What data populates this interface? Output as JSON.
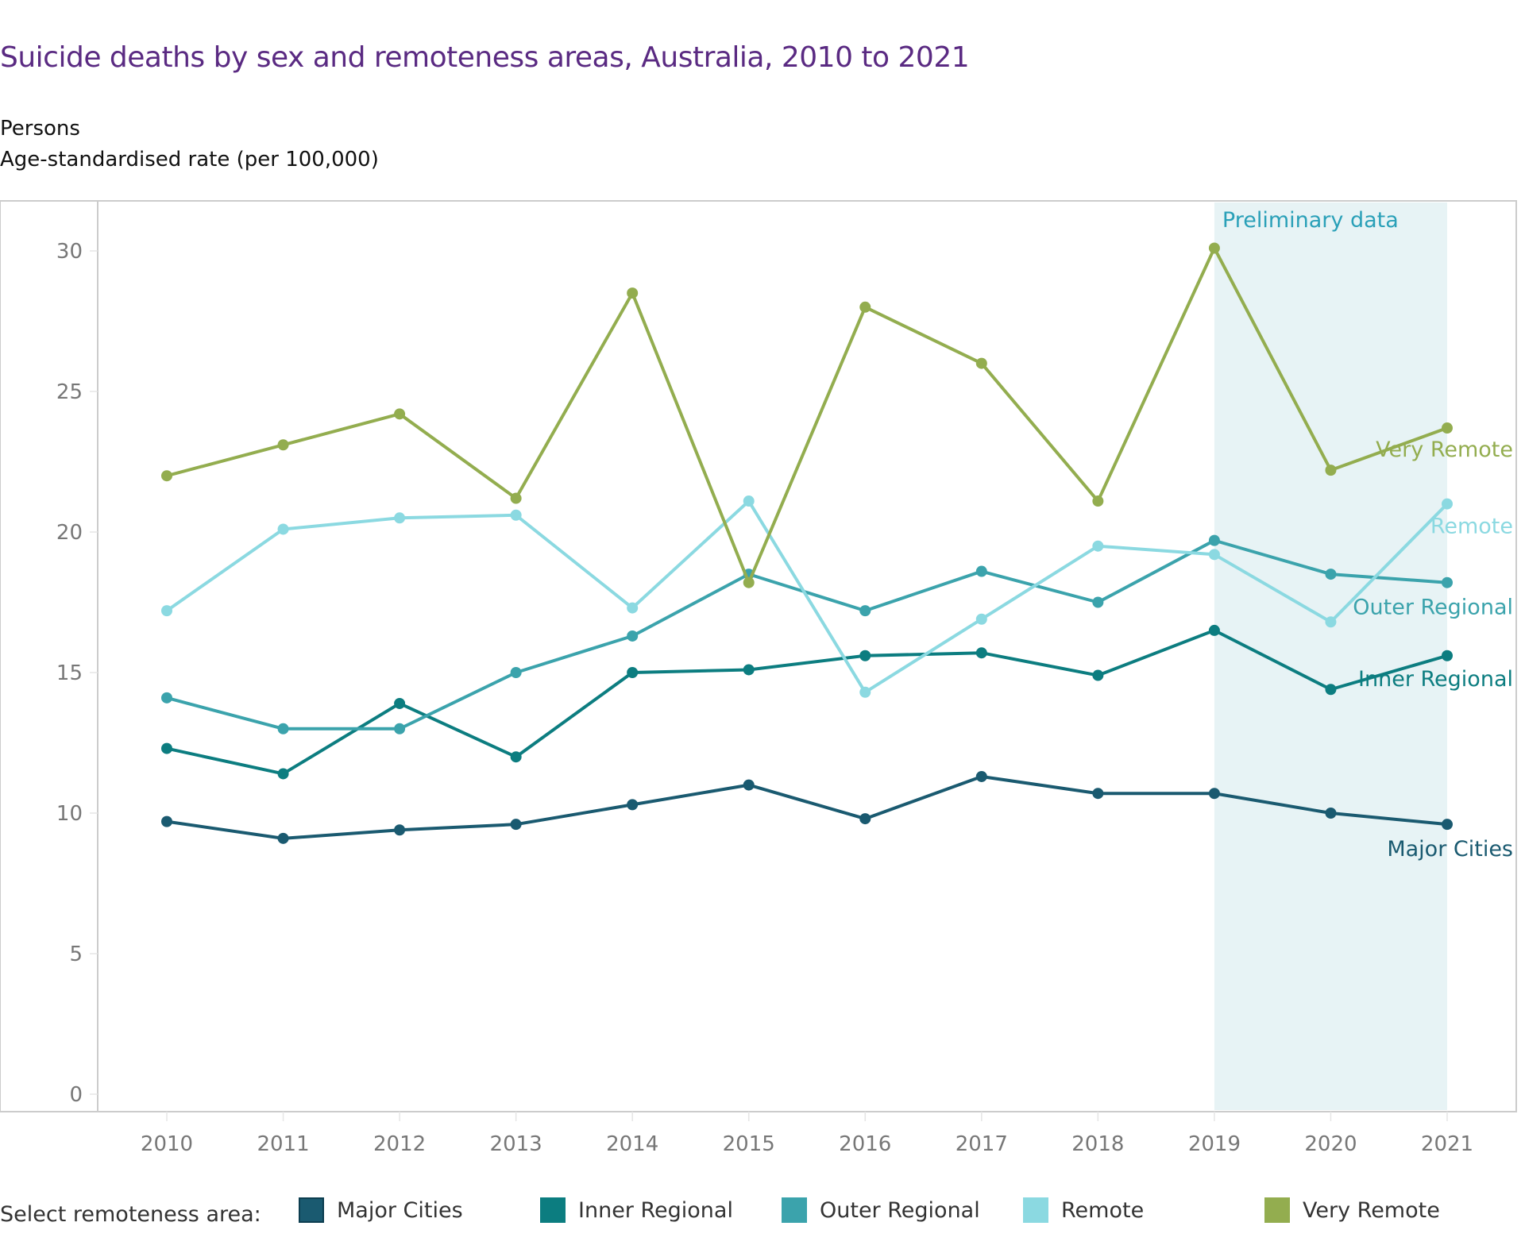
{
  "header": {
    "title": "Suicide deaths by sex and remoteness areas, Australia, 2010 to 2021",
    "subtitle_sex": "Persons",
    "subtitle_measure": "Age-standardised rate (per 100,000)"
  },
  "legend": {
    "title": "Select remoteness area:",
    "items": [
      {
        "label": "Major Cities",
        "color": "#1a5a70"
      },
      {
        "label": "Inner Regional",
        "color": "#0c7d80"
      },
      {
        "label": "Outer Regional",
        "color": "#3ba3ac"
      },
      {
        "label": "Remote",
        "color": "#8bd9e1"
      },
      {
        "label": "Very Remote",
        "color": "#93ad4f"
      }
    ]
  },
  "chart_data": {
    "type": "line",
    "title": "Suicide deaths by sex and remoteness areas, Australia, 2010 to 2021",
    "xlabel": "",
    "ylabel": "Age-standardised rate (per 100,000)",
    "x": [
      "2010",
      "2011",
      "2012",
      "2013",
      "2014",
      "2015",
      "2016",
      "2017",
      "2018",
      "2019",
      "2020",
      "2021"
    ],
    "ylim": [
      0,
      30
    ],
    "yticks": [
      0,
      5,
      10,
      15,
      20,
      25,
      30
    ],
    "grid": false,
    "legend_position": "bottom",
    "annotation": {
      "text": "Preliminary data",
      "from": "2019",
      "to": "2021",
      "color": "#e7f3f5"
    },
    "series": [
      {
        "name": "Major Cities",
        "color": "#1a5a70",
        "values": [
          9.7,
          9.1,
          9.4,
          9.6,
          10.3,
          11.0,
          9.8,
          11.3,
          10.7,
          10.7,
          10.0,
          9.6
        ]
      },
      {
        "name": "Inner Regional",
        "color": "#0c7d80",
        "values": [
          12.3,
          11.4,
          13.9,
          12.0,
          15.0,
          15.1,
          15.6,
          15.7,
          14.9,
          16.5,
          14.4,
          15.6
        ]
      },
      {
        "name": "Outer Regional",
        "color": "#3ba3ac",
        "values": [
          14.1,
          13.0,
          13.0,
          15.0,
          16.3,
          18.5,
          17.2,
          18.6,
          17.5,
          19.7,
          18.5,
          18.2
        ]
      },
      {
        "name": "Remote",
        "color": "#8bd9e1",
        "values": [
          17.2,
          20.1,
          20.5,
          20.6,
          17.3,
          21.1,
          14.3,
          16.9,
          19.5,
          19.2,
          16.8,
          21.0
        ]
      },
      {
        "name": "Very Remote",
        "color": "#93ad4f",
        "values": [
          22.0,
          23.1,
          24.2,
          21.2,
          28.5,
          18.2,
          28.0,
          26.0,
          21.1,
          30.1,
          22.2,
          23.7
        ]
      }
    ]
  }
}
